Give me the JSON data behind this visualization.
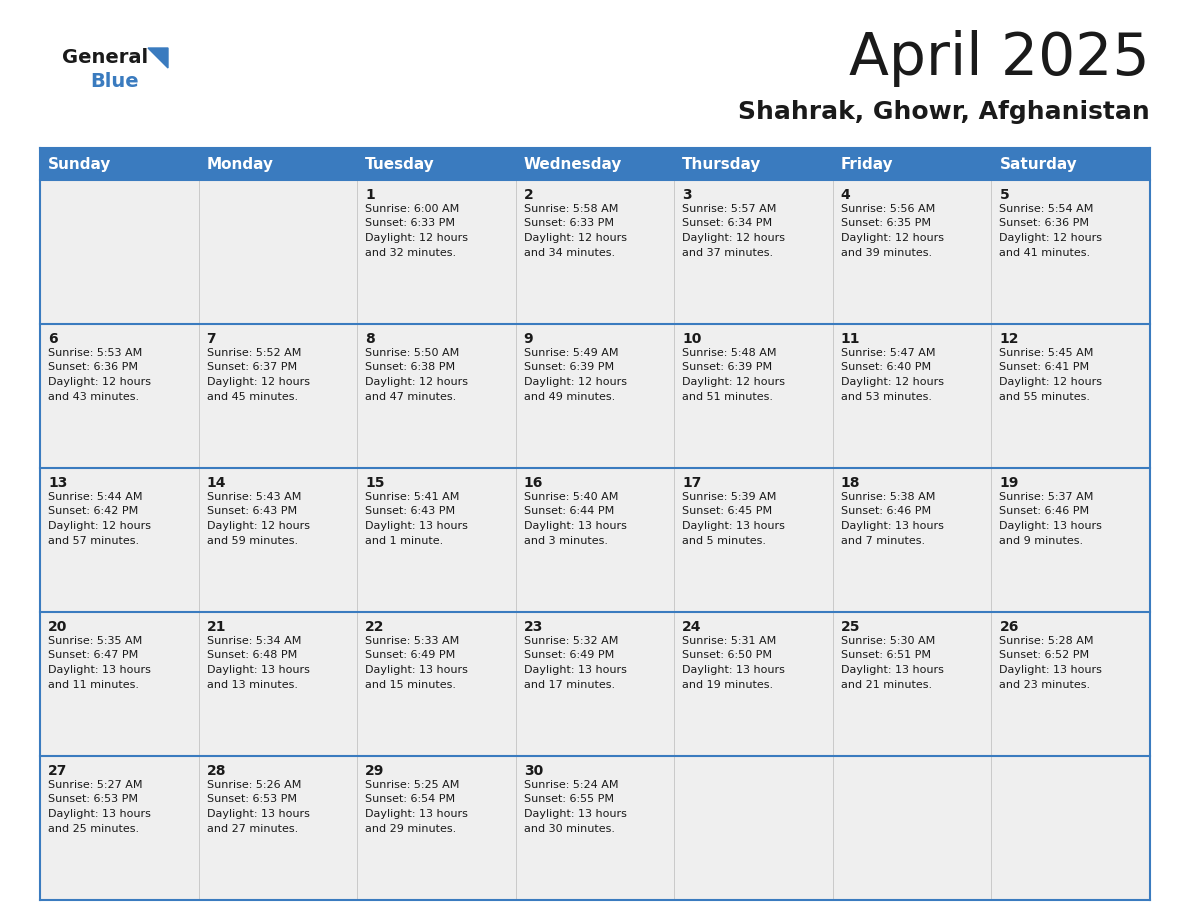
{
  "title": "April 2025",
  "subtitle": "Shahrak, Ghowr, Afghanistan",
  "header_bg": "#3a7bbf",
  "header_text": "#ffffff",
  "cell_bg": "#efefef",
  "border_color": "#3a7bbf",
  "text_color": "#1a1a1a",
  "days_of_week": [
    "Sunday",
    "Monday",
    "Tuesday",
    "Wednesday",
    "Thursday",
    "Friday",
    "Saturday"
  ],
  "weeks": [
    [
      {
        "day": "",
        "sunrise": "",
        "sunset": "",
        "daylight": ""
      },
      {
        "day": "",
        "sunrise": "",
        "sunset": "",
        "daylight": ""
      },
      {
        "day": "1",
        "sunrise": "Sunrise: 6:00 AM",
        "sunset": "Sunset: 6:33 PM",
        "daylight": "Daylight: 12 hours\nand 32 minutes."
      },
      {
        "day": "2",
        "sunrise": "Sunrise: 5:58 AM",
        "sunset": "Sunset: 6:33 PM",
        "daylight": "Daylight: 12 hours\nand 34 minutes."
      },
      {
        "day": "3",
        "sunrise": "Sunrise: 5:57 AM",
        "sunset": "Sunset: 6:34 PM",
        "daylight": "Daylight: 12 hours\nand 37 minutes."
      },
      {
        "day": "4",
        "sunrise": "Sunrise: 5:56 AM",
        "sunset": "Sunset: 6:35 PM",
        "daylight": "Daylight: 12 hours\nand 39 minutes."
      },
      {
        "day": "5",
        "sunrise": "Sunrise: 5:54 AM",
        "sunset": "Sunset: 6:36 PM",
        "daylight": "Daylight: 12 hours\nand 41 minutes."
      }
    ],
    [
      {
        "day": "6",
        "sunrise": "Sunrise: 5:53 AM",
        "sunset": "Sunset: 6:36 PM",
        "daylight": "Daylight: 12 hours\nand 43 minutes."
      },
      {
        "day": "7",
        "sunrise": "Sunrise: 5:52 AM",
        "sunset": "Sunset: 6:37 PM",
        "daylight": "Daylight: 12 hours\nand 45 minutes."
      },
      {
        "day": "8",
        "sunrise": "Sunrise: 5:50 AM",
        "sunset": "Sunset: 6:38 PM",
        "daylight": "Daylight: 12 hours\nand 47 minutes."
      },
      {
        "day": "9",
        "sunrise": "Sunrise: 5:49 AM",
        "sunset": "Sunset: 6:39 PM",
        "daylight": "Daylight: 12 hours\nand 49 minutes."
      },
      {
        "day": "10",
        "sunrise": "Sunrise: 5:48 AM",
        "sunset": "Sunset: 6:39 PM",
        "daylight": "Daylight: 12 hours\nand 51 minutes."
      },
      {
        "day": "11",
        "sunrise": "Sunrise: 5:47 AM",
        "sunset": "Sunset: 6:40 PM",
        "daylight": "Daylight: 12 hours\nand 53 minutes."
      },
      {
        "day": "12",
        "sunrise": "Sunrise: 5:45 AM",
        "sunset": "Sunset: 6:41 PM",
        "daylight": "Daylight: 12 hours\nand 55 minutes."
      }
    ],
    [
      {
        "day": "13",
        "sunrise": "Sunrise: 5:44 AM",
        "sunset": "Sunset: 6:42 PM",
        "daylight": "Daylight: 12 hours\nand 57 minutes."
      },
      {
        "day": "14",
        "sunrise": "Sunrise: 5:43 AM",
        "sunset": "Sunset: 6:43 PM",
        "daylight": "Daylight: 12 hours\nand 59 minutes."
      },
      {
        "day": "15",
        "sunrise": "Sunrise: 5:41 AM",
        "sunset": "Sunset: 6:43 PM",
        "daylight": "Daylight: 13 hours\nand 1 minute."
      },
      {
        "day": "16",
        "sunrise": "Sunrise: 5:40 AM",
        "sunset": "Sunset: 6:44 PM",
        "daylight": "Daylight: 13 hours\nand 3 minutes."
      },
      {
        "day": "17",
        "sunrise": "Sunrise: 5:39 AM",
        "sunset": "Sunset: 6:45 PM",
        "daylight": "Daylight: 13 hours\nand 5 minutes."
      },
      {
        "day": "18",
        "sunrise": "Sunrise: 5:38 AM",
        "sunset": "Sunset: 6:46 PM",
        "daylight": "Daylight: 13 hours\nand 7 minutes."
      },
      {
        "day": "19",
        "sunrise": "Sunrise: 5:37 AM",
        "sunset": "Sunset: 6:46 PM",
        "daylight": "Daylight: 13 hours\nand 9 minutes."
      }
    ],
    [
      {
        "day": "20",
        "sunrise": "Sunrise: 5:35 AM",
        "sunset": "Sunset: 6:47 PM",
        "daylight": "Daylight: 13 hours\nand 11 minutes."
      },
      {
        "day": "21",
        "sunrise": "Sunrise: 5:34 AM",
        "sunset": "Sunset: 6:48 PM",
        "daylight": "Daylight: 13 hours\nand 13 minutes."
      },
      {
        "day": "22",
        "sunrise": "Sunrise: 5:33 AM",
        "sunset": "Sunset: 6:49 PM",
        "daylight": "Daylight: 13 hours\nand 15 minutes."
      },
      {
        "day": "23",
        "sunrise": "Sunrise: 5:32 AM",
        "sunset": "Sunset: 6:49 PM",
        "daylight": "Daylight: 13 hours\nand 17 minutes."
      },
      {
        "day": "24",
        "sunrise": "Sunrise: 5:31 AM",
        "sunset": "Sunset: 6:50 PM",
        "daylight": "Daylight: 13 hours\nand 19 minutes."
      },
      {
        "day": "25",
        "sunrise": "Sunrise: 5:30 AM",
        "sunset": "Sunset: 6:51 PM",
        "daylight": "Daylight: 13 hours\nand 21 minutes."
      },
      {
        "day": "26",
        "sunrise": "Sunrise: 5:28 AM",
        "sunset": "Sunset: 6:52 PM",
        "daylight": "Daylight: 13 hours\nand 23 minutes."
      }
    ],
    [
      {
        "day": "27",
        "sunrise": "Sunrise: 5:27 AM",
        "sunset": "Sunset: 6:53 PM",
        "daylight": "Daylight: 13 hours\nand 25 minutes."
      },
      {
        "day": "28",
        "sunrise": "Sunrise: 5:26 AM",
        "sunset": "Sunset: 6:53 PM",
        "daylight": "Daylight: 13 hours\nand 27 minutes."
      },
      {
        "day": "29",
        "sunrise": "Sunrise: 5:25 AM",
        "sunset": "Sunset: 6:54 PM",
        "daylight": "Daylight: 13 hours\nand 29 minutes."
      },
      {
        "day": "30",
        "sunrise": "Sunrise: 5:24 AM",
        "sunset": "Sunset: 6:55 PM",
        "daylight": "Daylight: 13 hours\nand 30 minutes."
      },
      {
        "day": "",
        "sunrise": "",
        "sunset": "",
        "daylight": ""
      },
      {
        "day": "",
        "sunrise": "",
        "sunset": "",
        "daylight": ""
      },
      {
        "day": "",
        "sunrise": "",
        "sunset": "",
        "daylight": ""
      }
    ]
  ],
  "logo_general_color": "#1a1a1a",
  "logo_blue_color": "#3a7bbf",
  "title_fontsize": 42,
  "subtitle_fontsize": 18,
  "header_fontsize": 11,
  "day_number_fontsize": 10,
  "cell_text_fontsize": 8
}
